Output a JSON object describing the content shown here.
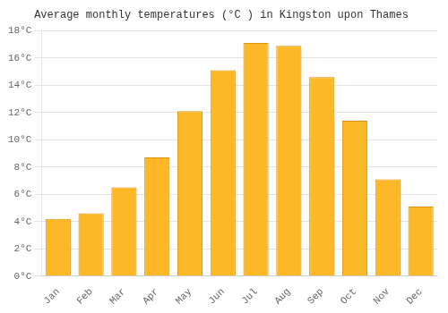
{
  "chart_data": {
    "type": "bar",
    "title": "Average monthly temperatures (°C ) in Kingston upon Thames",
    "categories": [
      "Jan",
      "Feb",
      "Mar",
      "Apr",
      "May",
      "Jun",
      "Jul",
      "Aug",
      "Sep",
      "Oct",
      "Nov",
      "Dec"
    ],
    "values": [
      4.2,
      4.6,
      6.5,
      8.7,
      12.1,
      15.1,
      17.1,
      16.9,
      14.6,
      11.4,
      7.1,
      5.1
    ],
    "color": "#FDB827",
    "ylim": [
      0,
      18
    ],
    "yticks": [
      {
        "value": 0,
        "label": "0°C"
      },
      {
        "value": 2,
        "label": "2°C"
      },
      {
        "value": 4,
        "label": "4°C"
      },
      {
        "value": 6,
        "label": "6°C"
      },
      {
        "value": 8,
        "label": "8°C"
      },
      {
        "value": 10,
        "label": "10°C"
      },
      {
        "value": 12,
        "label": "12°C"
      },
      {
        "value": 14,
        "label": "14°C"
      },
      {
        "value": 16,
        "label": "16°C"
      },
      {
        "value": 18,
        "label": "18°C"
      }
    ],
    "grid": true
  }
}
